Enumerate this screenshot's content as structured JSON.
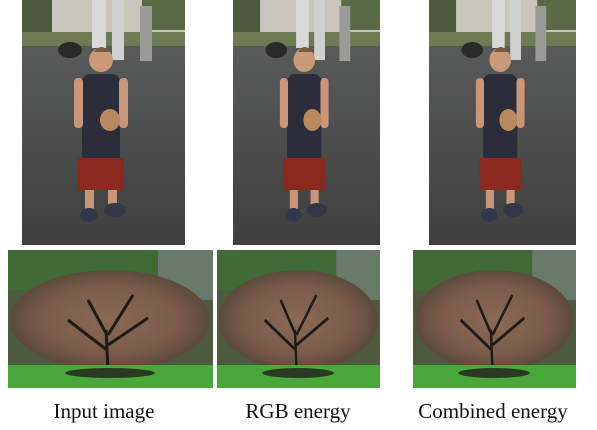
{
  "captions": [
    "Input image",
    "RGB energy",
    "Combined energy"
  ]
}
